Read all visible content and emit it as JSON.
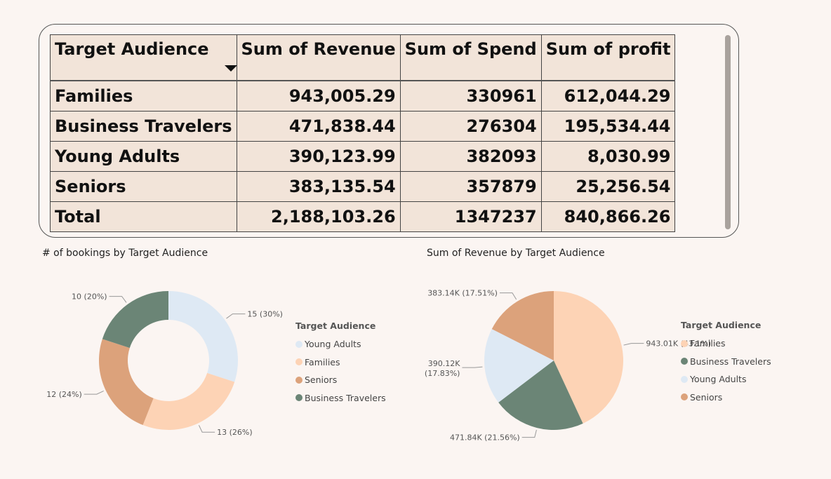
{
  "table": {
    "headers": [
      "Target Audience",
      "Sum of Revenue",
      "Sum of Spend",
      "Sum of profit"
    ],
    "rows": [
      [
        "Families",
        "943,005.29",
        "330961",
        "612,044.29"
      ],
      [
        "Business Travelers",
        "471,838.44",
        "276304",
        "195,534.44"
      ],
      [
        "Young Adults",
        "390,123.99",
        "382093",
        "8,030.99"
      ],
      [
        "Seniors",
        "383,135.54",
        "357879",
        "25,256.54"
      ]
    ],
    "total": [
      "Total",
      "2,188,103.26",
      "1347237",
      "840,866.26"
    ]
  },
  "chart_data": [
    {
      "type": "pie",
      "variant": "donut",
      "title": "# of bookings by Target Audience",
      "legend_title": "Target Audience",
      "legend_placement": "right",
      "slices": [
        {
          "name": "Young Adults",
          "value": 15,
          "label": "15 (30%)",
          "color": "#DEE9F4"
        },
        {
          "name": "Families",
          "value": 13,
          "label": "13 (26%)",
          "color": "#FDD3B5"
        },
        {
          "name": "Seniors",
          "value": 12,
          "label": "12 (24%)",
          "color": "#DCA27B"
        },
        {
          "name": "Business Travelers",
          "value": 10,
          "label": "10 (20%)",
          "color": "#6B8576"
        }
      ]
    },
    {
      "type": "pie",
      "title": "Sum of Revenue by Target Audience",
      "legend_title": "Target Audience",
      "legend_placement": "right",
      "slices": [
        {
          "name": "Families",
          "value": 943005.29,
          "label": "943.01K (43.1%)",
          "color": "#FDD3B5"
        },
        {
          "name": "Business Travelers",
          "value": 471838.44,
          "label": "471.84K (21.56%)",
          "color": "#6B8576"
        },
        {
          "name": "Young Adults",
          "value": 390123.99,
          "label": "390.12K (17.83%)",
          "color": "#DEE9F4"
        },
        {
          "name": "Seniors",
          "value": 383135.54,
          "label": "383.14K (17.51%)",
          "color": "#DCA27B"
        }
      ]
    }
  ]
}
